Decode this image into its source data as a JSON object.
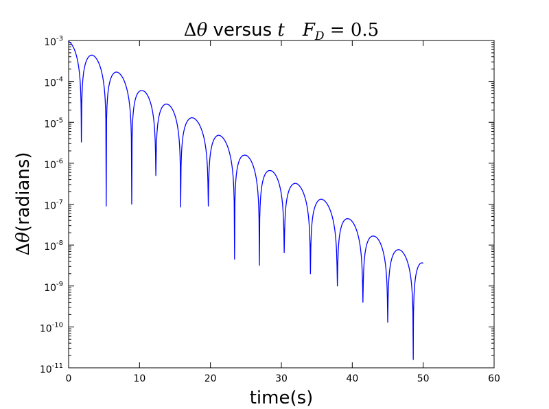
{
  "chart_data": {
    "type": "line",
    "scale_y": "log",
    "title": {
      "delta": "Δ",
      "theta": "θ",
      "middle": " versus ",
      "t": "t",
      "F": "F",
      "sub": "D",
      "eq": " = 0.5"
    },
    "xlabel": "time(s)",
    "ylabel": {
      "delta": "Δ",
      "theta": "θ",
      "unit": "(radians)"
    },
    "xlim": [
      0,
      60
    ],
    "ylim": [
      1e-11,
      0.001
    ],
    "x_ticks": [
      "0",
      "10",
      "20",
      "30",
      "40",
      "50",
      "60"
    ],
    "y_ticks": [
      {
        "base": "10",
        "exp": "-11"
      },
      {
        "base": "10",
        "exp": "-10"
      },
      {
        "base": "10",
        "exp": "-9"
      },
      {
        "base": "10",
        "exp": "-8"
      },
      {
        "base": "10",
        "exp": "-7"
      },
      {
        "base": "10",
        "exp": "-6"
      },
      {
        "base": "10",
        "exp": "-5"
      },
      {
        "base": "10",
        "exp": "-4"
      },
      {
        "base": "10",
        "exp": "-3"
      }
    ],
    "grid": false,
    "legend": "none",
    "series": [
      {
        "color": "#0000ff",
        "x_end": 50,
        "start": [
          0,
          0.00095
        ],
        "end": [
          50,
          3.6e-09
        ],
        "peaks": [
          [
            3.3,
            0.00045
          ],
          [
            6.7,
            0.00018
          ],
          [
            10.3,
            6.2e-05
          ],
          [
            13.9,
            2.8e-05
          ],
          [
            17.4,
            1.35e-05
          ],
          [
            21.1,
            5.2e-06
          ],
          [
            24.7,
            1.7e-06
          ],
          [
            28.4,
            6.8e-07
          ],
          [
            32.0,
            3.3e-07
          ],
          [
            35.6,
            1.4e-07
          ],
          [
            39.3,
            4.7e-08
          ],
          [
            43.0,
            1.7e-08
          ],
          [
            46.5,
            8e-09
          ]
        ],
        "dips": [
          [
            1.8,
            3.3e-06
          ],
          [
            5.3,
            9e-08
          ],
          [
            8.9,
            1e-07
          ],
          [
            12.3,
            5e-07
          ],
          [
            15.8,
            8.5e-08
          ],
          [
            19.7,
            9e-08
          ],
          [
            23.4,
            4.5e-09
          ],
          [
            26.9,
            3.2e-09
          ],
          [
            30.4,
            6.5e-09
          ],
          [
            34.1,
            2e-09
          ],
          [
            37.9,
            1e-09
          ],
          [
            41.5,
            4e-10
          ],
          [
            45.0,
            1.3e-10
          ],
          [
            48.6,
            1.6e-11
          ]
        ]
      }
    ]
  }
}
